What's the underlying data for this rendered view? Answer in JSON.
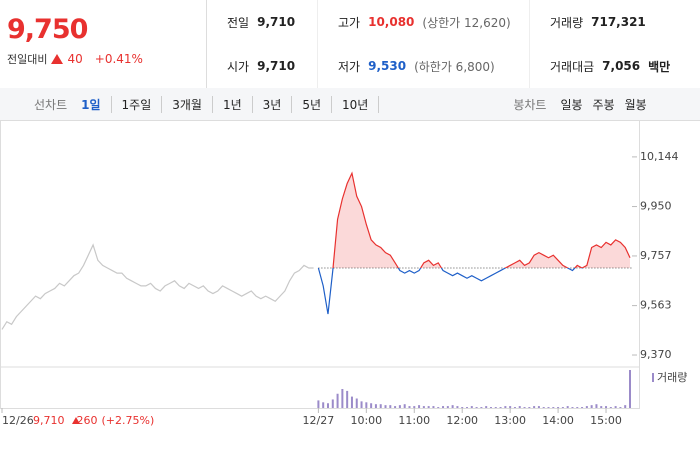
{
  "quote": {
    "price": "9,750",
    "change_label": "전일대비",
    "change": "40",
    "change_pct": "+0.41%"
  },
  "stats": [
    {
      "label": "전일",
      "value": "9,710"
    },
    {
      "label": "고가",
      "value": "10,080",
      "note": "(상한가 12,620)"
    },
    {
      "label": "거래량",
      "value": "717,321"
    },
    {
      "label": "시가",
      "value": "9,710"
    },
    {
      "label": "저가",
      "value": "9,530",
      "note": "(하한가 6,800)"
    },
    {
      "label": "거래대금",
      "value": "7,056",
      "unit": "백만"
    }
  ],
  "tabs": {
    "line_label": "선차트",
    "line": [
      "1일",
      "1주일",
      "3개월",
      "1년",
      "3년",
      "5년",
      "10년"
    ],
    "selected": 0,
    "candle_label": "봉차트",
    "candle": [
      "일봉",
      "주봉",
      "월봉"
    ]
  },
  "prev_day": {
    "date": "12/26",
    "close": "9,710",
    "change": "260",
    "change_pct": "(+2.75%)"
  },
  "chart_data": {
    "type": "line",
    "categories": [
      "12/26",
      null,
      null,
      null,
      null,
      null,
      null,
      null,
      null,
      null,
      null,
      null,
      null,
      null,
      null,
      null,
      null,
      null,
      null,
      null,
      null,
      null,
      null,
      null,
      null,
      null,
      null,
      null,
      null,
      null,
      null,
      null,
      null,
      null,
      null,
      null,
      null,
      null,
      null,
      null,
      null,
      null,
      null,
      null,
      null,
      null,
      null,
      null,
      null,
      null,
      null,
      null,
      null,
      null,
      null,
      null,
      null,
      null,
      null,
      null,
      null,
      null,
      null,
      null,
      null,
      null,
      "12/27",
      null,
      null,
      null,
      null,
      null,
      null,
      null,
      null,
      null,
      "10:00",
      null,
      null,
      null,
      null,
      null,
      null,
      null,
      null,
      null,
      "11:00",
      null,
      null,
      null,
      null,
      null,
      null,
      null,
      null,
      null,
      "12:00",
      null,
      null,
      null,
      null,
      null,
      null,
      null,
      null,
      null,
      "13:00",
      null,
      null,
      null,
      null,
      null,
      null,
      null,
      null,
      null,
      "14:00",
      null,
      null,
      null,
      null,
      null,
      null,
      null,
      null,
      null,
      "15:00",
      null,
      null,
      null,
      null,
      null
    ],
    "series": [
      {
        "color": "#c8c8c8",
        "values": [
          9470,
          9500,
          9490,
          9520,
          9540,
          9560,
          9580,
          9600,
          9590,
          9610,
          9620,
          9630,
          9650,
          9640,
          9660,
          9680,
          9690,
          9720,
          9760,
          9800,
          9740,
          9720,
          9710,
          9700,
          9690,
          9690,
          9670,
          9660,
          9650,
          9640,
          9640,
          9650,
          9630,
          9620,
          9640,
          9650,
          9660,
          9640,
          9630,
          9650,
          9640,
          9630,
          9640,
          9620,
          9610,
          9620,
          9640,
          9630,
          9620,
          9610,
          9600,
          9610,
          9620,
          9600,
          9590,
          9600,
          9590,
          9580,
          9600,
          9620,
          9660,
          9690,
          9700,
          9720,
          9710,
          9710,
          null,
          null,
          null,
          null,
          null,
          null,
          null,
          null,
          null,
          null,
          null,
          null,
          null,
          null,
          null,
          null,
          null,
          null,
          null,
          null,
          null,
          null,
          null,
          null,
          null,
          null,
          null,
          null,
          null,
          null,
          null,
          null,
          null,
          null,
          null,
          null,
          null,
          null,
          null,
          null,
          null,
          null,
          null,
          null,
          null,
          null,
          null,
          null,
          null,
          null,
          null,
          null,
          null,
          null,
          null,
          null,
          null,
          null,
          null,
          null,
          null,
          null,
          null,
          null,
          null,
          null
        ]
      },
      {
        "color": "#e8312f",
        "down_color": "#1e5fc8",
        "area_color": "#fbd9d9",
        "values": [
          null,
          null,
          null,
          null,
          null,
          null,
          null,
          null,
          null,
          null,
          null,
          null,
          null,
          null,
          null,
          null,
          null,
          null,
          null,
          null,
          null,
          null,
          null,
          null,
          null,
          null,
          null,
          null,
          null,
          null,
          null,
          null,
          null,
          null,
          null,
          null,
          null,
          null,
          null,
          null,
          null,
          null,
          null,
          null,
          null,
          null,
          null,
          null,
          null,
          null,
          null,
          null,
          null,
          null,
          null,
          null,
          null,
          null,
          null,
          null,
          null,
          null,
          null,
          null,
          null,
          null,
          9710,
          9640,
          9530,
          9700,
          9900,
          9980,
          10040,
          10080,
          9990,
          9950,
          9880,
          9820,
          9800,
          9790,
          9770,
          9760,
          9730,
          9700,
          9690,
          9700,
          9690,
          9700,
          9730,
          9740,
          9720,
          9730,
          9700,
          9690,
          9680,
          9690,
          9680,
          9670,
          9680,
          9670,
          9660,
          9670,
          9680,
          9690,
          9700,
          9710,
          9720,
          9730,
          9740,
          9720,
          9730,
          9760,
          9770,
          9760,
          9750,
          9760,
          9740,
          9720,
          9710,
          9700,
          9720,
          9710,
          9720,
          9790,
          9800,
          9790,
          9810,
          9800,
          9820,
          9810,
          9790,
          9750
        ]
      }
    ],
    "baseline": 9710,
    "ylim": [
      9331,
      10210
    ],
    "yticks": [
      {
        "value": 10144,
        "label": "10,144"
      },
      {
        "value": 9950,
        "label": "9,950"
      },
      {
        "value": 9757,
        "label": "9,757"
      },
      {
        "value": 9563,
        "label": "9,563"
      },
      {
        "value": 9370,
        "label": "9,370"
      }
    ],
    "grid": false,
    "volume": {
      "name": "거래량",
      "color": "#9b8bc9",
      "vlim": [
        0,
        40000
      ],
      "values": [
        null,
        null,
        null,
        null,
        null,
        null,
        null,
        null,
        null,
        null,
        null,
        null,
        null,
        null,
        null,
        null,
        null,
        null,
        null,
        null,
        null,
        null,
        null,
        null,
        null,
        null,
        null,
        null,
        null,
        null,
        null,
        null,
        null,
        null,
        null,
        null,
        null,
        null,
        null,
        null,
        null,
        null,
        null,
        null,
        null,
        null,
        null,
        null,
        null,
        null,
        null,
        null,
        null,
        null,
        null,
        null,
        null,
        null,
        null,
        null,
        null,
        null,
        null,
        null,
        null,
        null,
        8000,
        6000,
        5000,
        9000,
        15000,
        20000,
        18000,
        12000,
        10000,
        7000,
        6000,
        5000,
        4000,
        4000,
        3000,
        3000,
        2000,
        3000,
        4000,
        2000,
        2000,
        3000,
        2000,
        2000,
        2000,
        1000,
        2000,
        2000,
        3000,
        2000,
        1000,
        1000,
        2000,
        1000,
        1000,
        2000,
        1000,
        1000,
        1000,
        2000,
        2000,
        1000,
        2000,
        1000,
        1000,
        2000,
        2000,
        1000,
        1000,
        1000,
        1000,
        1000,
        2000,
        1000,
        1000,
        1000,
        2000,
        3000,
        4000,
        2000,
        2000,
        1000,
        2000,
        1000,
        3000,
        40000
      ]
    }
  }
}
